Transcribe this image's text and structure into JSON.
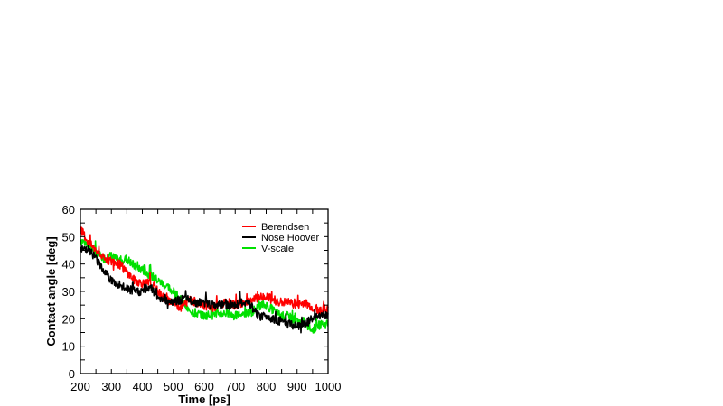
{
  "chart_data": {
    "type": "line",
    "title": "",
    "xlabel": "Time [ps]",
    "ylabel": "Contact angle [deg]",
    "xlim": [
      200,
      1000
    ],
    "ylim": [
      0,
      60
    ],
    "xticks": [
      200,
      300,
      400,
      500,
      600,
      700,
      800,
      900,
      1000
    ],
    "yticks": [
      0,
      10,
      20,
      30,
      40,
      50,
      60
    ],
    "x_minor_step": 50,
    "y_minor_step": 5,
    "grid": false,
    "legend_position": "upper right (inside)",
    "x": [
      200,
      225,
      250,
      275,
      300,
      325,
      350,
      375,
      400,
      425,
      450,
      475,
      500,
      525,
      550,
      575,
      600,
      625,
      650,
      675,
      700,
      725,
      750,
      775,
      800,
      825,
      850,
      875,
      900,
      925,
      950,
      975,
      1000
    ],
    "series": [
      {
        "name": "Berendsen",
        "color": "#ff0000",
        "values": [
          53,
          48,
          45,
          42,
          41,
          40,
          37,
          34,
          33,
          33,
          30,
          27,
          26,
          24,
          27,
          26,
          25,
          24,
          25,
          26,
          25,
          26,
          26,
          28,
          28,
          27,
          26,
          26,
          25,
          26,
          24,
          23,
          24
        ]
      },
      {
        "name": "Nose Hoover",
        "color": "#000000",
        "values": [
          45,
          46,
          42,
          38,
          34,
          32,
          31,
          30,
          30,
          32,
          28,
          27,
          26,
          27,
          27,
          26,
          26,
          25,
          25,
          25,
          25,
          26,
          25,
          21,
          21,
          20,
          19,
          18,
          17,
          18,
          20,
          21,
          22
        ]
      },
      {
        "name": "V-scale",
        "color": "#00e000",
        "values": [
          49,
          47,
          44,
          42,
          43,
          41,
          42,
          39,
          38,
          36,
          34,
          32,
          30,
          27,
          23,
          22,
          21,
          22,
          22,
          22,
          21,
          22,
          22,
          25,
          25,
          23,
          21,
          21,
          19,
          18,
          16,
          18,
          18
        ]
      }
    ]
  }
}
